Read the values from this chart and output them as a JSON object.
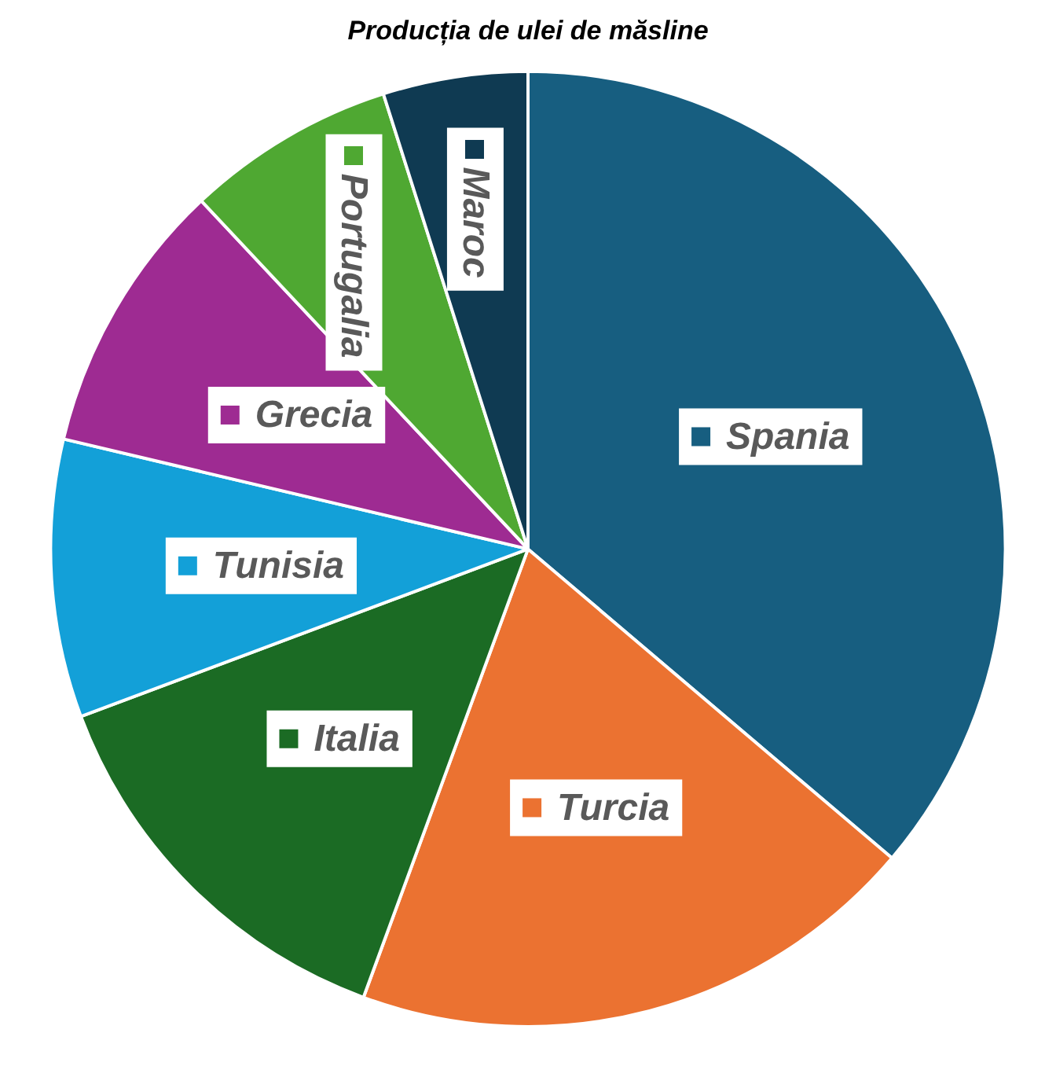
{
  "chart_data": {
    "type": "pie",
    "title": "Producția de ulei de măsline",
    "categories": [
      "Spania",
      "Turcia",
      "Italia",
      "Tunisia",
      "Grecia",
      "Portugalia",
      "Maroc"
    ],
    "values": [
      36.2,
      19.4,
      13.7,
      9.4,
      9.3,
      7.1,
      4.9
    ],
    "colors": [
      "#175e80",
      "#eb7231",
      "#1b6b24",
      "#13a0d8",
      "#9e2b92",
      "#4fa832",
      "#0f3a52"
    ],
    "legend": "center"
  }
}
